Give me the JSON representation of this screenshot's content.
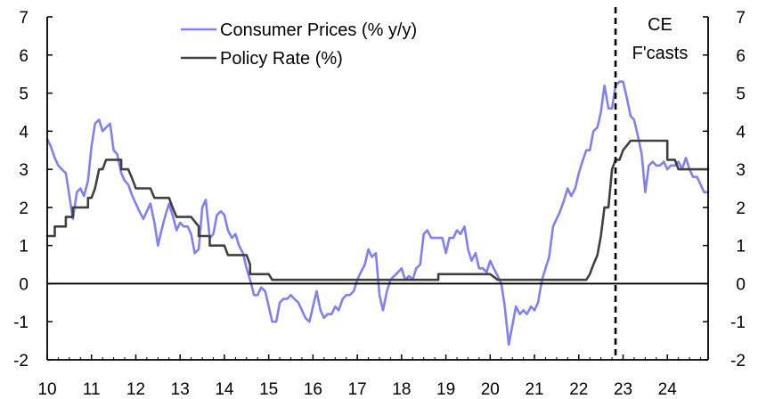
{
  "chart_data": {
    "type": "line",
    "title": "",
    "xlabel": "",
    "ylabel": "",
    "xlim": [
      2010,
      2024.92
    ],
    "ylim": [
      -2,
      7
    ],
    "x_ticks": [
      {
        "value": 2010,
        "label": "10"
      },
      {
        "value": 2011,
        "label": "11"
      },
      {
        "value": 2012,
        "label": "12"
      },
      {
        "value": 2013,
        "label": "13"
      },
      {
        "value": 2014,
        "label": "14"
      },
      {
        "value": 2015,
        "label": "15"
      },
      {
        "value": 2016,
        "label": "16"
      },
      {
        "value": 2017,
        "label": "17"
      },
      {
        "value": 2018,
        "label": "18"
      },
      {
        "value": 2019,
        "label": "19"
      },
      {
        "value": 2020,
        "label": "20"
      },
      {
        "value": 2021,
        "label": "21"
      },
      {
        "value": 2022,
        "label": "22"
      },
      {
        "value": 2023,
        "label": "23"
      },
      {
        "value": 2024,
        "label": "24"
      }
    ],
    "y_ticks_left": [
      "-2",
      "-1",
      "0",
      "1",
      "2",
      "3",
      "4",
      "5",
      "6",
      "7"
    ],
    "y_ticks_right": [
      "-2",
      "-1",
      "0",
      "1",
      "2",
      "3",
      "4",
      "5",
      "6",
      "7"
    ],
    "zero_line": 0,
    "forecast_start": 2022.83,
    "annotation": {
      "line1": "CE",
      "line2": "F'casts"
    },
    "legend": {
      "position": "top-center",
      "entries": [
        {
          "label": "Consumer Prices (% y/y)",
          "color": "#8080f0"
        },
        {
          "label": "Policy Rate (%)",
          "color": "#404040"
        }
      ]
    },
    "series": [
      {
        "name": "Consumer Prices (% y/y)",
        "color": "#8080f0",
        "points": [
          [
            2010.0,
            3.8
          ],
          [
            2010.08,
            3.6
          ],
          [
            2010.17,
            3.3
          ],
          [
            2010.25,
            3.1
          ],
          [
            2010.33,
            3.0
          ],
          [
            2010.42,
            2.9
          ],
          [
            2010.5,
            2.3
          ],
          [
            2010.58,
            1.7
          ],
          [
            2010.67,
            2.4
          ],
          [
            2010.75,
            2.5
          ],
          [
            2010.83,
            2.3
          ],
          [
            2010.92,
            2.7
          ],
          [
            2011.0,
            3.6
          ],
          [
            2011.08,
            4.2
          ],
          [
            2011.17,
            4.3
          ],
          [
            2011.25,
            4.0
          ],
          [
            2011.33,
            4.1
          ],
          [
            2011.42,
            4.2
          ],
          [
            2011.5,
            3.5
          ],
          [
            2011.58,
            3.4
          ],
          [
            2011.67,
            2.9
          ],
          [
            2011.75,
            2.7
          ],
          [
            2011.83,
            2.6
          ],
          [
            2011.92,
            2.3
          ],
          [
            2012.0,
            2.1
          ],
          [
            2012.08,
            1.9
          ],
          [
            2012.17,
            1.7
          ],
          [
            2012.25,
            1.9
          ],
          [
            2012.33,
            2.1
          ],
          [
            2012.42,
            1.6
          ],
          [
            2012.5,
            1.0
          ],
          [
            2012.58,
            1.4
          ],
          [
            2012.67,
            1.8
          ],
          [
            2012.75,
            2.1
          ],
          [
            2012.83,
            1.8
          ],
          [
            2012.92,
            1.4
          ],
          [
            2013.0,
            1.6
          ],
          [
            2013.08,
            1.5
          ],
          [
            2013.17,
            1.5
          ],
          [
            2013.25,
            1.3
          ],
          [
            2013.33,
            0.8
          ],
          [
            2013.42,
            0.9
          ],
          [
            2013.5,
            2.0
          ],
          [
            2013.58,
            2.2
          ],
          [
            2013.67,
            1.2
          ],
          [
            2013.75,
            1.3
          ],
          [
            2013.83,
            1.8
          ],
          [
            2013.92,
            1.9
          ],
          [
            2014.0,
            1.8
          ],
          [
            2014.08,
            1.4
          ],
          [
            2014.17,
            1.2
          ],
          [
            2014.25,
            1.3
          ],
          [
            2014.33,
            1.0
          ],
          [
            2014.42,
            0.8
          ],
          [
            2014.5,
            0.4
          ],
          [
            2014.58,
            0.1
          ],
          [
            2014.67,
            -0.3
          ],
          [
            2014.75,
            -0.3
          ],
          [
            2014.83,
            -0.1
          ],
          [
            2014.92,
            -0.2
          ],
          [
            2015.0,
            -0.6
          ],
          [
            2015.08,
            -1.0
          ],
          [
            2015.17,
            -1.0
          ],
          [
            2015.25,
            -0.5
          ],
          [
            2015.33,
            -0.4
          ],
          [
            2015.42,
            -0.4
          ],
          [
            2015.5,
            -0.3
          ],
          [
            2015.58,
            -0.4
          ],
          [
            2015.67,
            -0.5
          ],
          [
            2015.75,
            -0.7
          ],
          [
            2015.83,
            -0.9
          ],
          [
            2015.92,
            -1.0
          ],
          [
            2016.0,
            -0.6
          ],
          [
            2016.08,
            -0.2
          ],
          [
            2016.17,
            -0.7
          ],
          [
            2016.25,
            -0.9
          ],
          [
            2016.33,
            -0.8
          ],
          [
            2016.42,
            -0.8
          ],
          [
            2016.5,
            -0.6
          ],
          [
            2016.58,
            -0.7
          ],
          [
            2016.67,
            -0.4
          ],
          [
            2016.75,
            -0.3
          ],
          [
            2016.83,
            -0.3
          ],
          [
            2016.92,
            -0.2
          ],
          [
            2017.0,
            0.1
          ],
          [
            2017.08,
            0.3
          ],
          [
            2017.17,
            0.5
          ],
          [
            2017.25,
            0.9
          ],
          [
            2017.33,
            0.7
          ],
          [
            2017.42,
            0.8
          ],
          [
            2017.5,
            -0.3
          ],
          [
            2017.58,
            -0.7
          ],
          [
            2017.67,
            -0.2
          ],
          [
            2017.75,
            0.1
          ],
          [
            2017.83,
            0.2
          ],
          [
            2017.92,
            0.3
          ],
          [
            2018.0,
            0.4
          ],
          [
            2018.08,
            0.1
          ],
          [
            2018.17,
            0.2
          ],
          [
            2018.25,
            0.1
          ],
          [
            2018.33,
            0.4
          ],
          [
            2018.42,
            0.5
          ],
          [
            2018.5,
            1.3
          ],
          [
            2018.58,
            1.4
          ],
          [
            2018.67,
            1.2
          ],
          [
            2018.75,
            1.2
          ],
          [
            2018.83,
            1.2
          ],
          [
            2018.92,
            1.2
          ],
          [
            2019.0,
            0.8
          ],
          [
            2019.08,
            1.2
          ],
          [
            2019.17,
            1.2
          ],
          [
            2019.25,
            1.4
          ],
          [
            2019.33,
            1.3
          ],
          [
            2019.42,
            1.5
          ],
          [
            2019.5,
            0.9
          ],
          [
            2019.58,
            0.6
          ],
          [
            2019.67,
            0.8
          ],
          [
            2019.75,
            0.4
          ],
          [
            2019.83,
            0.4
          ],
          [
            2019.92,
            0.3
          ],
          [
            2020.0,
            0.6
          ],
          [
            2020.08,
            0.4
          ],
          [
            2020.17,
            0.2
          ],
          [
            2020.25,
            0.0
          ],
          [
            2020.33,
            -0.6
          ],
          [
            2020.42,
            -1.6
          ],
          [
            2020.5,
            -1.1
          ],
          [
            2020.58,
            -0.6
          ],
          [
            2020.67,
            -0.8
          ],
          [
            2020.75,
            -0.7
          ],
          [
            2020.83,
            -0.8
          ],
          [
            2020.92,
            -0.6
          ],
          [
            2021.0,
            -0.7
          ],
          [
            2021.08,
            -0.5
          ],
          [
            2021.17,
            0.1
          ],
          [
            2021.25,
            0.4
          ],
          [
            2021.33,
            0.7
          ],
          [
            2021.42,
            1.5
          ],
          [
            2021.5,
            1.7
          ],
          [
            2021.58,
            1.9
          ],
          [
            2021.67,
            2.2
          ],
          [
            2021.75,
            2.5
          ],
          [
            2021.83,
            2.3
          ],
          [
            2021.92,
            2.5
          ],
          [
            2022.0,
            2.9
          ],
          [
            2022.08,
            3.2
          ],
          [
            2022.17,
            3.5
          ],
          [
            2022.25,
            3.5
          ],
          [
            2022.33,
            4.0
          ],
          [
            2022.42,
            4.1
          ],
          [
            2022.5,
            4.5
          ],
          [
            2022.58,
            5.2
          ],
          [
            2022.67,
            4.6
          ],
          [
            2022.75,
            4.6
          ],
          [
            2022.83,
            5.2
          ],
          [
            2022.92,
            5.3
          ],
          [
            2023.0,
            5.3
          ],
          [
            2023.08,
            4.9
          ],
          [
            2023.17,
            4.4
          ],
          [
            2023.25,
            4.3
          ],
          [
            2023.33,
            3.9
          ],
          [
            2023.42,
            3.4
          ],
          [
            2023.5,
            2.4
          ],
          [
            2023.58,
            3.1
          ],
          [
            2023.67,
            3.2
          ],
          [
            2023.75,
            3.1
          ],
          [
            2023.83,
            3.1
          ],
          [
            2023.92,
            3.2
          ],
          [
            2024.0,
            3.0
          ],
          [
            2024.08,
            3.1
          ],
          [
            2024.17,
            3.1
          ],
          [
            2024.25,
            3.2
          ],
          [
            2024.33,
            3.0
          ],
          [
            2024.42,
            3.3
          ],
          [
            2024.5,
            3.0
          ],
          [
            2024.58,
            2.8
          ],
          [
            2024.67,
            2.8
          ],
          [
            2024.75,
            2.6
          ],
          [
            2024.83,
            2.4
          ],
          [
            2024.92,
            2.4
          ]
        ]
      },
      {
        "name": "Policy Rate (%)",
        "color": "#404040",
        "points": [
          [
            2010.0,
            1.25
          ],
          [
            2010.17,
            1.25
          ],
          [
            2010.17,
            1.5
          ],
          [
            2010.42,
            1.5
          ],
          [
            2010.42,
            1.75
          ],
          [
            2010.58,
            1.75
          ],
          [
            2010.58,
            2.0
          ],
          [
            2010.92,
            2.0
          ],
          [
            2010.92,
            2.25
          ],
          [
            2011.0,
            2.25
          ],
          [
            2011.08,
            2.5
          ],
          [
            2011.17,
            3.0
          ],
          [
            2011.25,
            3.0
          ],
          [
            2011.33,
            3.25
          ],
          [
            2011.67,
            3.25
          ],
          [
            2011.67,
            3.0
          ],
          [
            2011.83,
            3.0
          ],
          [
            2011.92,
            2.75
          ],
          [
            2012.0,
            2.5
          ],
          [
            2012.33,
            2.5
          ],
          [
            2012.42,
            2.25
          ],
          [
            2012.75,
            2.25
          ],
          [
            2012.83,
            2.0
          ],
          [
            2012.92,
            1.75
          ],
          [
            2013.25,
            1.75
          ],
          [
            2013.42,
            1.5
          ],
          [
            2013.42,
            1.25
          ],
          [
            2013.67,
            1.25
          ],
          [
            2013.67,
            1.0
          ],
          [
            2014.0,
            1.0
          ],
          [
            2014.08,
            0.75
          ],
          [
            2014.5,
            0.75
          ],
          [
            2014.58,
            0.5
          ],
          [
            2014.58,
            0.25
          ],
          [
            2015.0,
            0.25
          ],
          [
            2015.08,
            0.1
          ],
          [
            2017.0,
            0.1
          ],
          [
            2017.92,
            0.1
          ],
          [
            2018.0,
            0.1
          ],
          [
            2018.83,
            0.1
          ],
          [
            2018.83,
            0.25
          ],
          [
            2020.0,
            0.25
          ],
          [
            2020.17,
            0.1
          ],
          [
            2022.17,
            0.1
          ],
          [
            2022.25,
            0.25
          ],
          [
            2022.33,
            0.5
          ],
          [
            2022.42,
            0.75
          ],
          [
            2022.5,
            1.25
          ],
          [
            2022.58,
            2.0
          ],
          [
            2022.67,
            2.0
          ],
          [
            2022.75,
            3.0
          ],
          [
            2022.83,
            3.25
          ],
          [
            2022.92,
            3.25
          ],
          [
            2023.0,
            3.5
          ],
          [
            2023.17,
            3.75
          ],
          [
            2024.0,
            3.75
          ],
          [
            2024.0,
            3.25
          ],
          [
            2024.17,
            3.25
          ],
          [
            2024.25,
            3.0
          ],
          [
            2024.92,
            3.0
          ]
        ]
      }
    ]
  }
}
